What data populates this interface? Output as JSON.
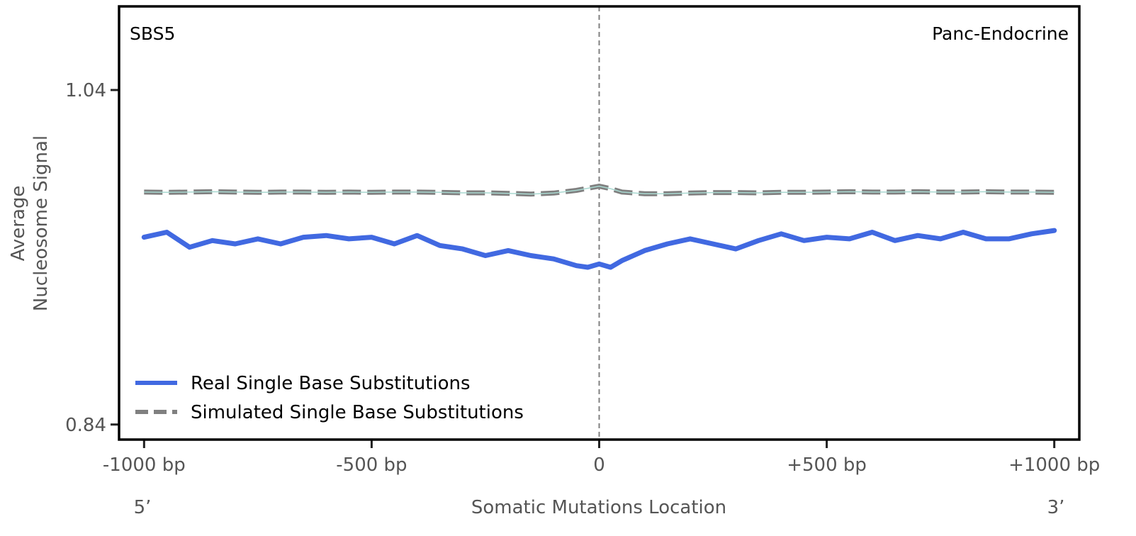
{
  "colors": {
    "real": "#4169E1",
    "simulated": "#808080",
    "simulated_core": "#A8D8D0",
    "center_line": "#808080",
    "frame": "#000000"
  },
  "chart_data": {
    "type": "line",
    "signature_label": "SBS5",
    "tissue_label": "Panc-Endocrine",
    "ylabel_line1": "Average",
    "ylabel_line2": "Nucleosome Signal",
    "xlabel": "Somatic Mutations Location",
    "x_end_labels": {
      "left": "5’",
      "right": "3’"
    },
    "xlim": [
      -1055,
      1055
    ],
    "ylim": [
      0.831,
      1.09
    ],
    "x_ticks": [
      {
        "value": -1000,
        "label": "-1000 bp"
      },
      {
        "value": -500,
        "label": "-500 bp"
      },
      {
        "value": 0,
        "label": "0"
      },
      {
        "value": 500,
        "label": "+500 bp"
      },
      {
        "value": 1000,
        "label": "+1000 bp"
      }
    ],
    "y_ticks": [
      {
        "value": 1.04,
        "label": "1.04"
      },
      {
        "value": 0.84,
        "label": "0.84"
      }
    ],
    "center_line_x": 0,
    "legend_position": "lower-left",
    "grid": false,
    "series": [
      {
        "name": "Real Single Base Substitutions",
        "style": "solid",
        "x": [
          -1000,
          -950,
          -900,
          -850,
          -800,
          -750,
          -700,
          -650,
          -600,
          -550,
          -500,
          -450,
          -400,
          -350,
          -300,
          -250,
          -200,
          -150,
          -100,
          -50,
          -25,
          0,
          25,
          50,
          100,
          150,
          200,
          250,
          300,
          350,
          400,
          450,
          500,
          550,
          600,
          650,
          700,
          750,
          800,
          850,
          900,
          950,
          1000
        ],
        "y": [
          0.952,
          0.955,
          0.946,
          0.95,
          0.948,
          0.951,
          0.948,
          0.952,
          0.953,
          0.951,
          0.952,
          0.948,
          0.953,
          0.947,
          0.945,
          0.941,
          0.944,
          0.941,
          0.939,
          0.935,
          0.934,
          0.936,
          0.934,
          0.938,
          0.944,
          0.948,
          0.951,
          0.948,
          0.945,
          0.95,
          0.954,
          0.95,
          0.952,
          0.951,
          0.955,
          0.95,
          0.953,
          0.951,
          0.955,
          0.951,
          0.951,
          0.954,
          0.956
        ]
      },
      {
        "name": "Simulated Single Base Substitutions",
        "style": "dashed",
        "x": [
          -1000,
          -950,
          -900,
          -850,
          -800,
          -750,
          -700,
          -650,
          -600,
          -550,
          -500,
          -450,
          -400,
          -350,
          -300,
          -250,
          -200,
          -150,
          -100,
          -50,
          0,
          25,
          50,
          100,
          150,
          200,
          250,
          300,
          350,
          400,
          450,
          500,
          550,
          600,
          650,
          700,
          750,
          800,
          850,
          900,
          950,
          1000
        ],
        "y": [
          0.979,
          0.9788,
          0.979,
          0.9792,
          0.979,
          0.9788,
          0.979,
          0.979,
          0.9788,
          0.979,
          0.9788,
          0.979,
          0.979,
          0.9788,
          0.9785,
          0.9785,
          0.9782,
          0.9778,
          0.9784,
          0.98,
          0.9825,
          0.981,
          0.979,
          0.978,
          0.978,
          0.9784,
          0.9787,
          0.9787,
          0.9785,
          0.9788,
          0.9788,
          0.979,
          0.9792,
          0.979,
          0.979,
          0.9792,
          0.979,
          0.979,
          0.9792,
          0.979,
          0.979,
          0.9788
        ]
      }
    ]
  }
}
